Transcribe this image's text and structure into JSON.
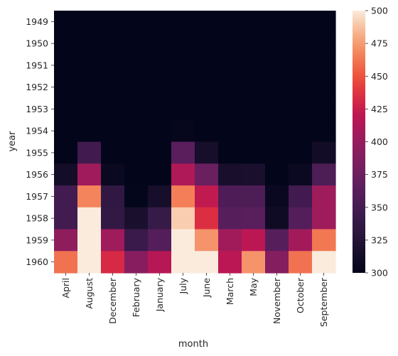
{
  "chart_data": {
    "type": "heatmap",
    "xlabel": "month",
    "ylabel": "year",
    "x_categories": [
      "April",
      "August",
      "December",
      "February",
      "January",
      "July",
      "June",
      "March",
      "May",
      "November",
      "October",
      "September"
    ],
    "y_categories": [
      "1949",
      "1950",
      "1951",
      "1952",
      "1953",
      "1954",
      "1955",
      "1956",
      "1957",
      "1958",
      "1959",
      "1960"
    ],
    "values": [
      [
        129,
        148,
        118,
        118,
        112,
        148,
        135,
        132,
        121,
        104,
        119,
        136
      ],
      [
        135,
        170,
        140,
        126,
        115,
        170,
        149,
        141,
        125,
        114,
        133,
        158
      ],
      [
        163,
        199,
        166,
        150,
        145,
        199,
        178,
        178,
        172,
        146,
        162,
        184
      ],
      [
        181,
        242,
        194,
        180,
        171,
        230,
        218,
        193,
        183,
        172,
        191,
        209
      ],
      [
        235,
        272,
        201,
        196,
        196,
        264,
        243,
        236,
        229,
        180,
        211,
        237
      ],
      [
        227,
        293,
        229,
        188,
        204,
        302,
        264,
        235,
        234,
        203,
        229,
        259
      ],
      [
        269,
        347,
        278,
        233,
        242,
        364,
        315,
        267,
        270,
        237,
        274,
        312
      ],
      [
        313,
        405,
        306,
        277,
        284,
        413,
        374,
        317,
        318,
        271,
        306,
        355
      ],
      [
        348,
        467,
        336,
        301,
        315,
        465,
        422,
        356,
        355,
        305,
        347,
        404
      ],
      [
        348,
        505,
        337,
        318,
        340,
        491,
        435,
        362,
        363,
        310,
        359,
        404
      ],
      [
        396,
        559,
        405,
        342,
        360,
        548,
        472,
        406,
        420,
        362,
        407,
        463
      ],
      [
        461,
        606,
        432,
        391,
        417,
        622,
        535,
        419,
        472,
        390,
        461,
        508
      ]
    ],
    "colorbar": {
      "min": 300,
      "max": 500,
      "ticks": [
        "300",
        "325",
        "350",
        "375",
        "400",
        "425",
        "450",
        "475",
        "500"
      ],
      "colormap": "rocket"
    },
    "grid": false,
    "legend": "colorbar-right"
  }
}
